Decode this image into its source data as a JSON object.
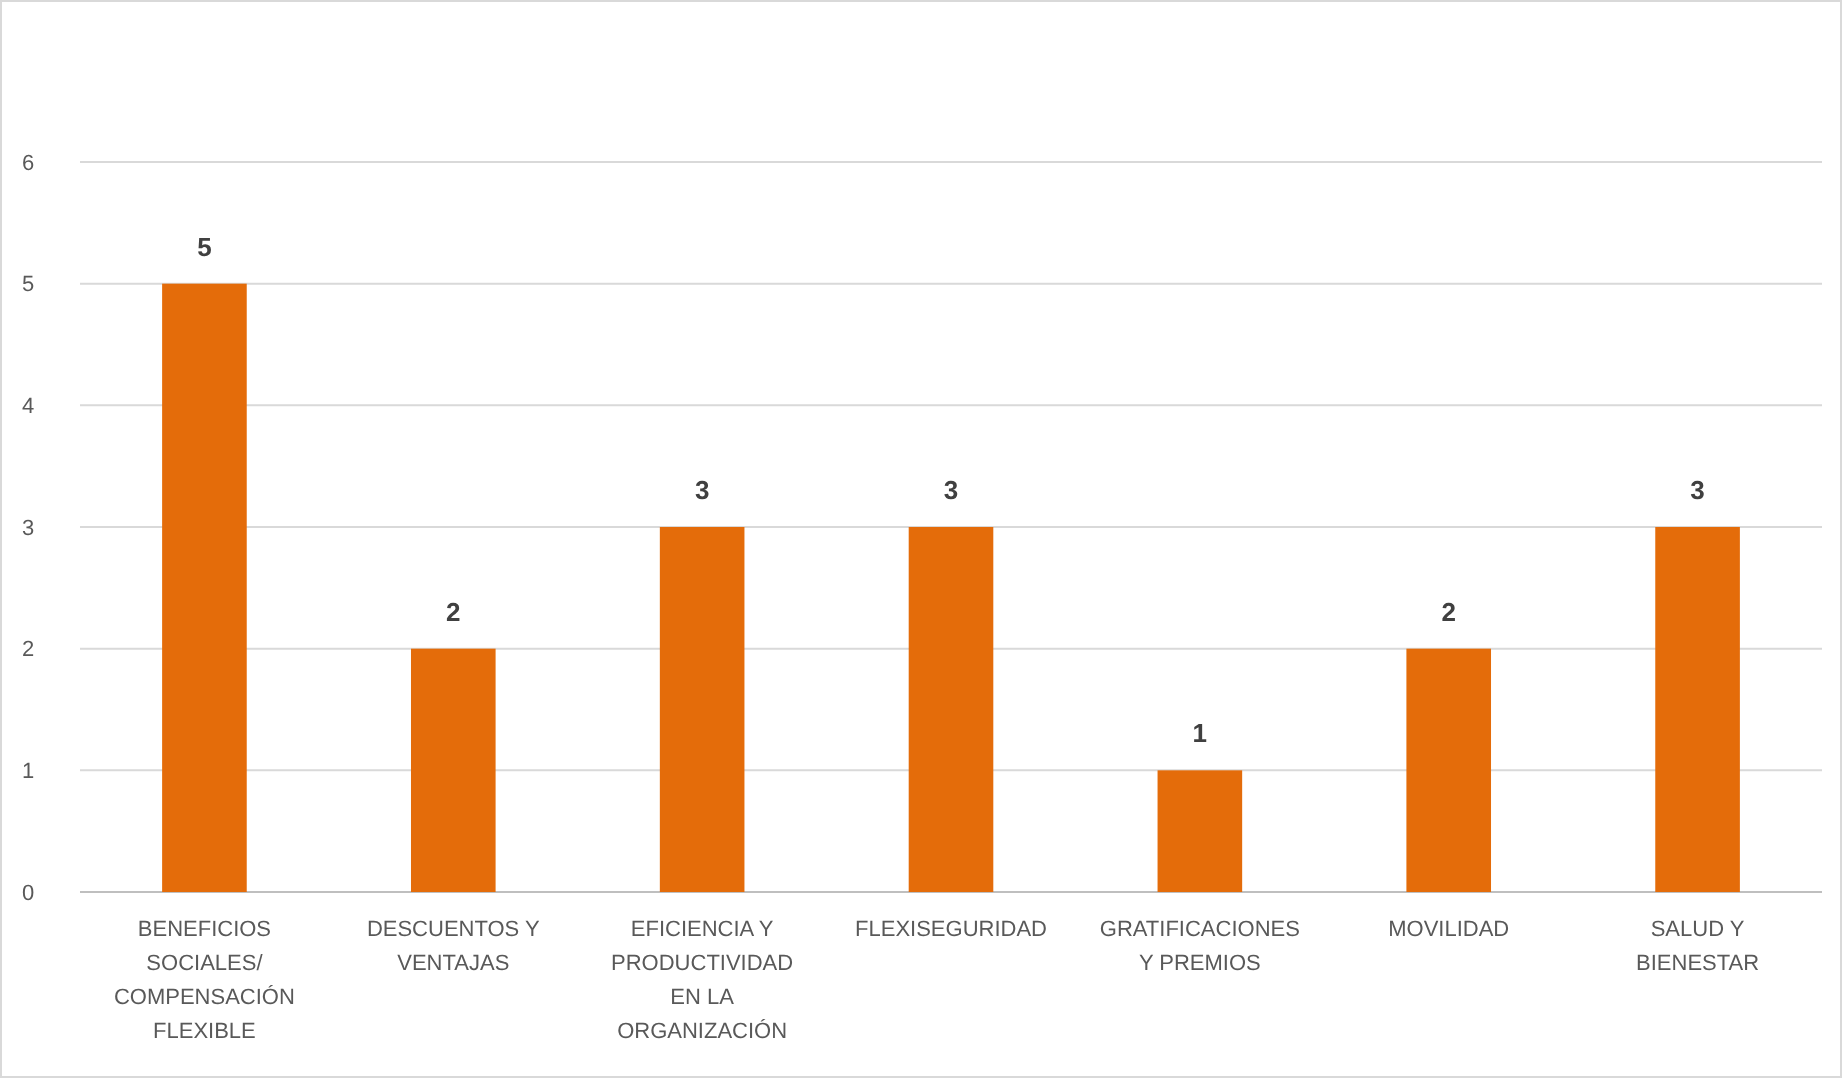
{
  "chart_data": {
    "type": "bar",
    "categories": [
      "BENEFICIOS SOCIALES/ COMPENSACIÓN FLEXIBLE",
      "DESCUENTOS Y VENTAJAS",
      "EFICIENCIA Y PRODUCTIVIDAD EN LA ORGANIZACIÓN",
      "FLEXISEGURIDAD",
      "GRATIFICACIONES Y PREMIOS",
      "MOVILIDAD",
      "SALUD Y BIENESTAR"
    ],
    "values": [
      5,
      2,
      3,
      3,
      1,
      2,
      3
    ],
    "color": "#e46c0a",
    "ylim": [
      0,
      6
    ],
    "yticks": [
      0,
      1,
      2,
      3,
      4,
      5,
      6
    ],
    "grid": "y",
    "data_labels": true
  }
}
